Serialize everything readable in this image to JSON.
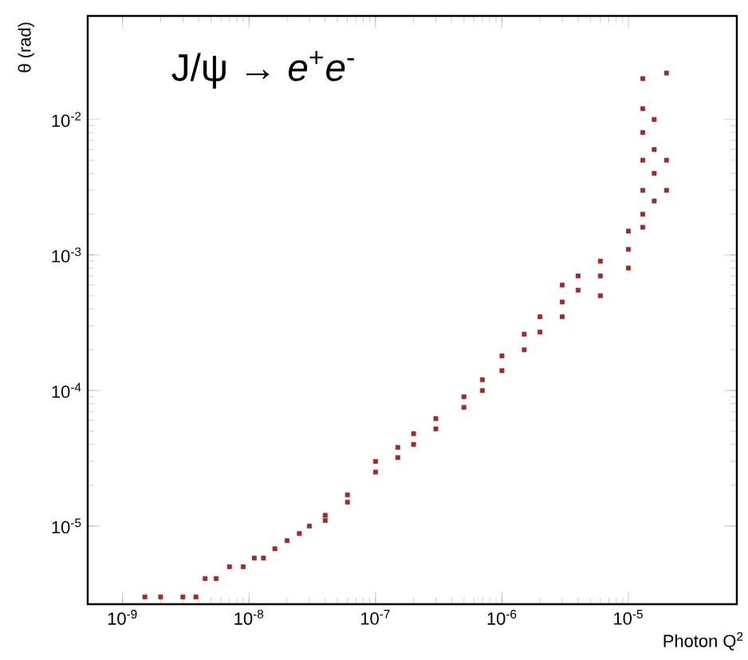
{
  "chart_data": {
    "type": "scatter",
    "xlabel": "Photon Q$^{2}$",
    "ylabel": "θ (rad)",
    "annotations": [
      "J/ψ → *e*$^{+}$*e*$^{-}$"
    ],
    "log": "xy",
    "marker": "square",
    "color": "#9b2d2d",
    "xlim": [
      5.3e-10,
      7.2e-05
    ],
    "ylim": [
      2.65e-06,
      0.058
    ],
    "xticks": [
      {
        "value": 1e-09,
        "label": "10$^{-9}$"
      },
      {
        "value": 1e-08,
        "label": "10$^{-8}$"
      },
      {
        "value": 1e-07,
        "label": "10$^{-7}$"
      },
      {
        "value": 1e-06,
        "label": "10$^{-6}$"
      },
      {
        "value": 1e-05,
        "label": "10$^{-5}$"
      }
    ],
    "yticks": [
      {
        "value": 1e-05,
        "label": "10$^{-5}$"
      },
      {
        "value": 0.0001,
        "label": "10$^{-4}$"
      },
      {
        "value": 0.001,
        "label": "10$^{-3}$"
      },
      {
        "value": 0.01,
        "label": "10$^{-2}$"
      }
    ],
    "x": [
      1.5e-09,
      2e-09,
      3e-09,
      3.8e-09,
      4.5e-09,
      5.5e-09,
      7e-09,
      9e-09,
      1.1e-08,
      1.3e-08,
      1.6e-08,
      2e-08,
      2.5e-08,
      3e-08,
      4e-08,
      4e-08,
      6e-08,
      6e-08,
      1e-07,
      1e-07,
      1.5e-07,
      1.5e-07,
      2e-07,
      2e-07,
      3e-07,
      3e-07,
      5e-07,
      5e-07,
      7e-07,
      7e-07,
      1e-06,
      1e-06,
      1.5e-06,
      1.5e-06,
      2e-06,
      2e-06,
      3e-06,
      3e-06,
      4e-06,
      4e-06,
      6e-06,
      6e-06,
      1e-05,
      1e-05,
      1.3e-05,
      1.3e-05,
      1.3e-05,
      1.3e-05,
      1.3e-05,
      1.3e-05,
      1.3e-05,
      1.6e-05,
      1.6e-05,
      1.6e-05,
      1.6e-05,
      2e-05,
      2e-05,
      2e-05,
      3e-06,
      6e-06,
      1e-05
    ],
    "values": [
      3e-06,
      3e-06,
      3e-06,
      3e-06,
      4.1e-06,
      4.1e-06,
      5e-06,
      5e-06,
      5.8e-06,
      5.8e-06,
      6.8e-06,
      7.8e-06,
      8.8e-06,
      1e-05,
      1.2e-05,
      1.1e-05,
      1.7e-05,
      1.5e-05,
      3e-05,
      2.5e-05,
      3.8e-05,
      3.2e-05,
      4.8e-05,
      4e-05,
      6.2e-05,
      5.2e-05,
      9e-05,
      7.5e-05,
      0.00012,
      0.0001,
      0.00018,
      0.00014,
      0.00026,
      0.0002,
      0.00035,
      0.00027,
      0.0006,
      0.00045,
      0.0007,
      0.00055,
      0.0009,
      0.0007,
      0.0015,
      0.0011,
      0.002,
      0.0016,
      0.003,
      0.005,
      0.008,
      0.012,
      0.02,
      0.0025,
      0.004,
      0.006,
      0.01,
      0.003,
      0.005,
      0.022,
      0.00035,
      0.0005,
      0.0008
    ]
  }
}
